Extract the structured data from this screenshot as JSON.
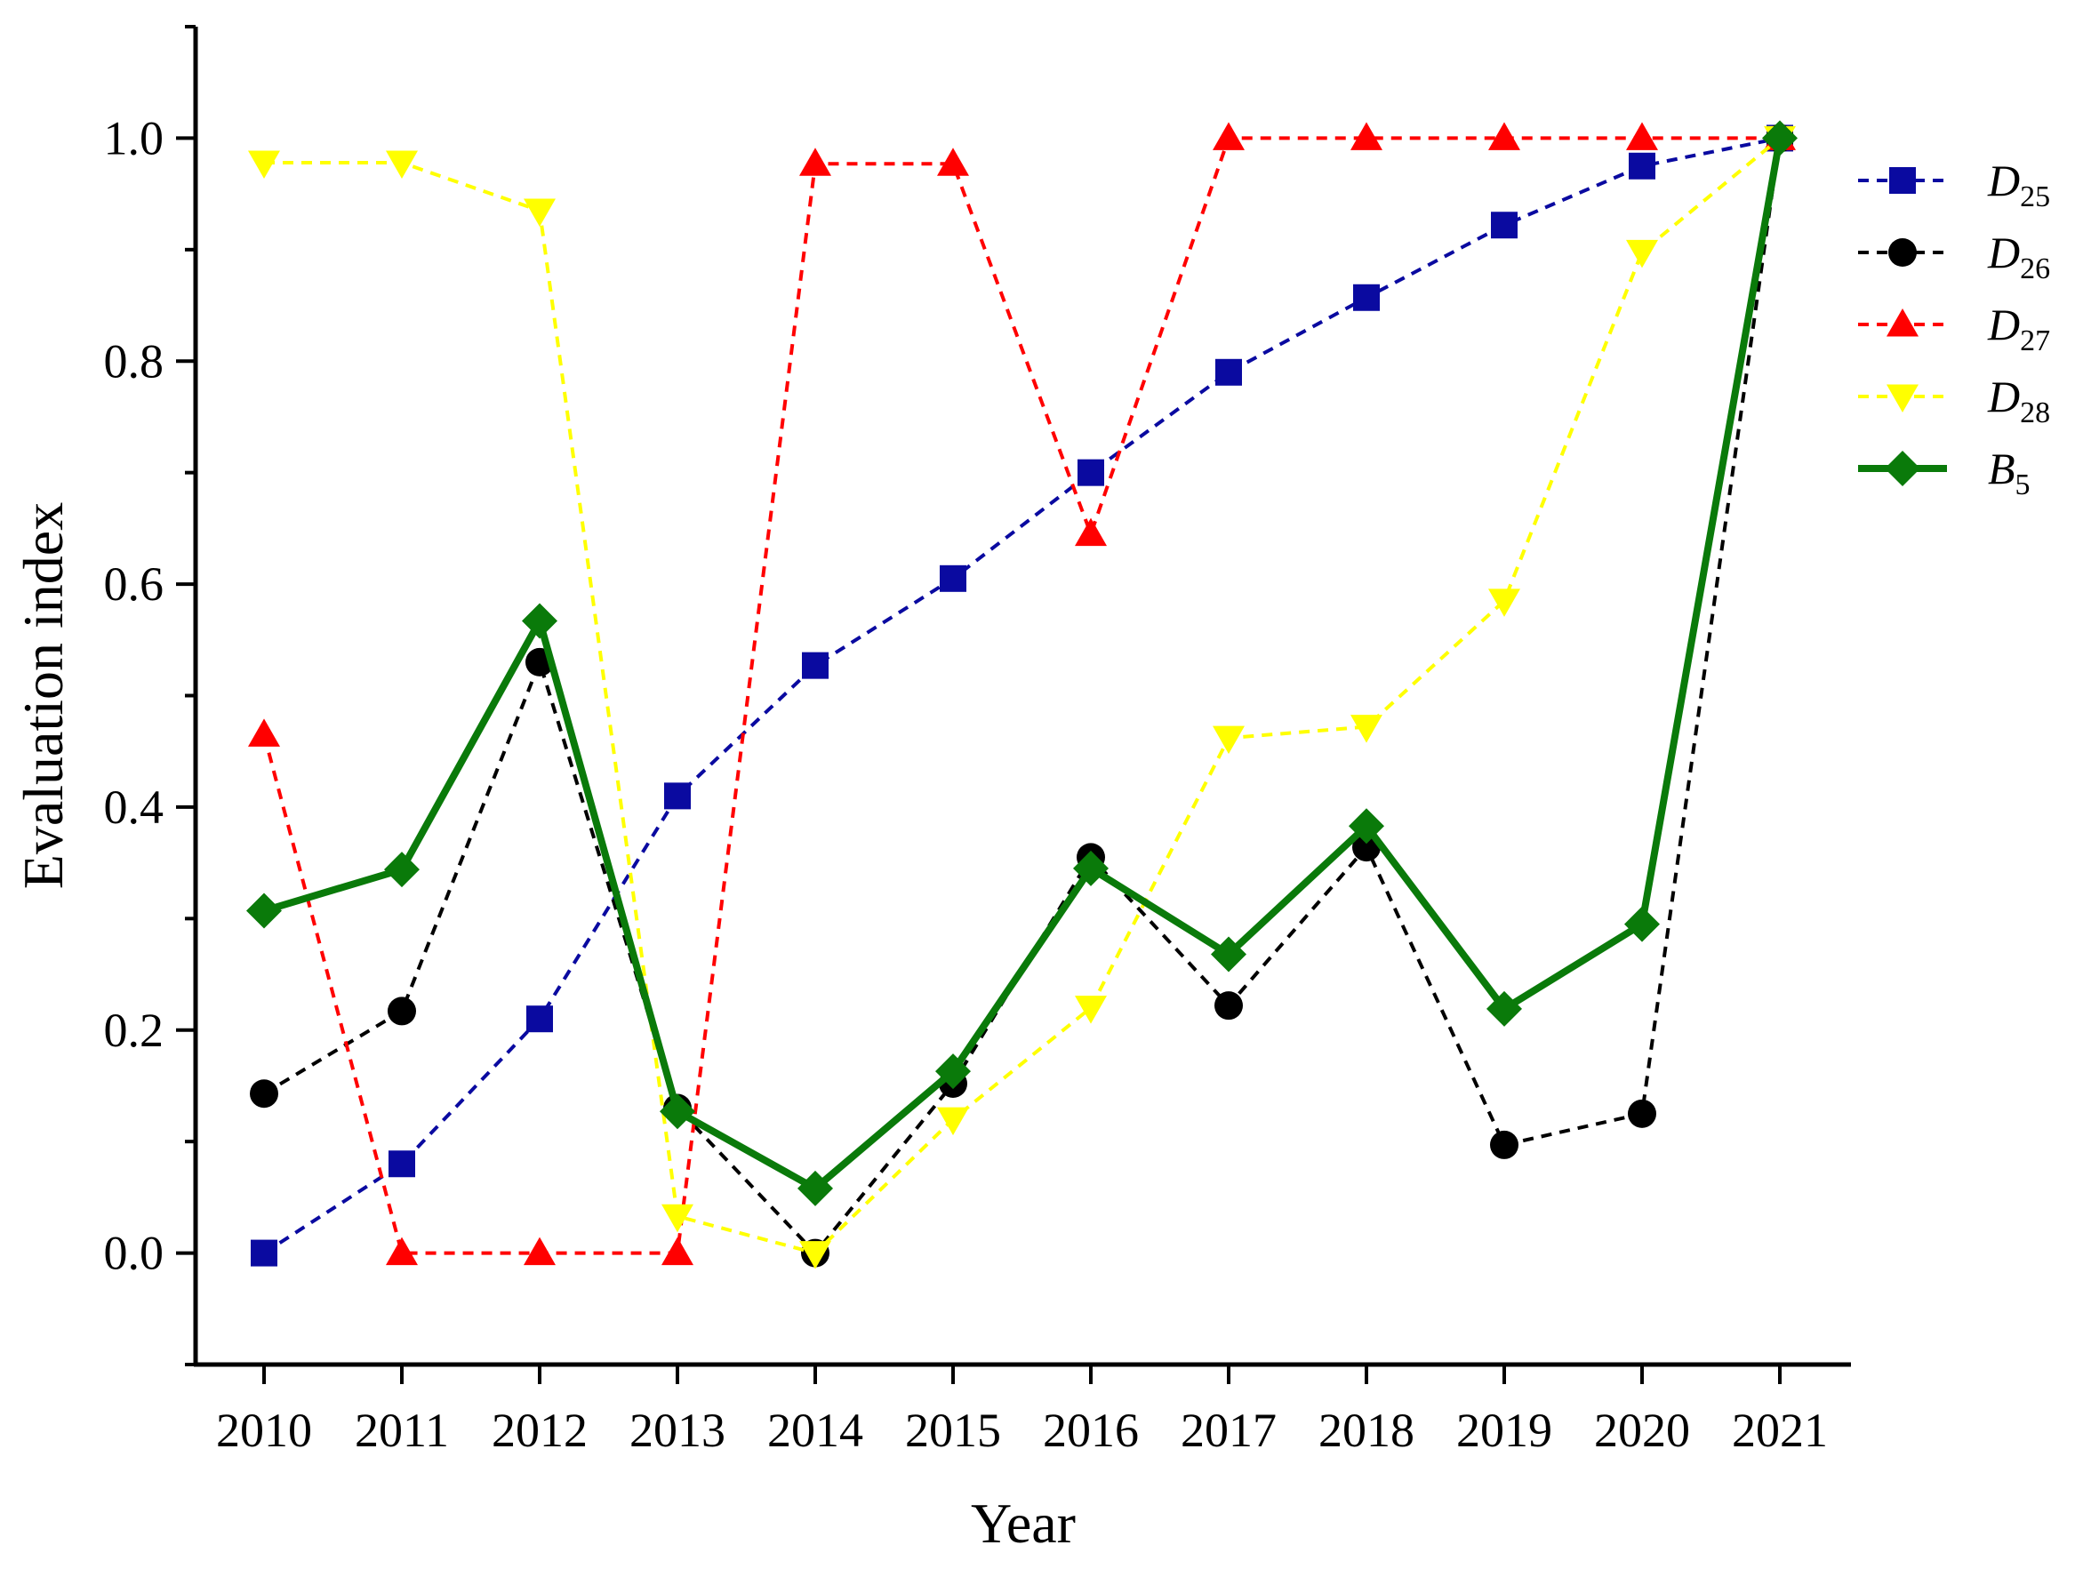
{
  "chart_data": {
    "type": "line",
    "title": "",
    "xlabel": "Year",
    "ylabel": "Evaluation index",
    "categories": [
      "2010",
      "2011",
      "2012",
      "2013",
      "2014",
      "2015",
      "2016",
      "2017",
      "2018",
      "2019",
      "2020",
      "2021"
    ],
    "ylim": [
      -0.1,
      1.1
    ],
    "yticks": [
      "0.0",
      "0.2",
      "0.4",
      "0.6",
      "0.8",
      "1.0"
    ],
    "legend_position": "top-right",
    "series": [
      {
        "key": "D25",
        "name": "D",
        "sub": "25",
        "color": "#0a0aa0",
        "marker": "square",
        "dashed": true,
        "values": [
          0.0,
          0.08,
          0.21,
          0.41,
          0.527,
          0.605,
          0.7,
          0.79,
          0.857,
          0.922,
          0.975,
          1.0
        ]
      },
      {
        "key": "D26",
        "name": "D",
        "sub": "26",
        "color": "#000000",
        "marker": "circle",
        "dashed": true,
        "values": [
          0.143,
          0.217,
          0.53,
          0.13,
          0.0,
          0.152,
          0.355,
          0.222,
          0.364,
          0.097,
          0.125,
          1.0
        ]
      },
      {
        "key": "D27",
        "name": "D",
        "sub": "27",
        "color": "#ff0000",
        "marker": "triangle-up",
        "dashed": true,
        "values": [
          0.465,
          0.0,
          0.0,
          0.0,
          0.977,
          0.977,
          0.645,
          1.0,
          1.0,
          1.0,
          1.0,
          1.0
        ]
      },
      {
        "key": "D28",
        "name": "D",
        "sub": "28",
        "color": "#ffff00",
        "marker": "triangle-down",
        "dashed": true,
        "values": [
          0.978,
          0.978,
          0.935,
          0.033,
          0.0,
          0.12,
          0.22,
          0.462,
          0.472,
          0.585,
          0.898,
          1.0
        ]
      },
      {
        "key": "B5",
        "name": "B",
        "sub": "5",
        "color": "#0a7a0a",
        "marker": "diamond",
        "dashed": false,
        "values": [
          0.307,
          0.344,
          0.567,
          0.127,
          0.058,
          0.163,
          0.345,
          0.268,
          0.383,
          0.219,
          0.295,
          1.0
        ]
      }
    ]
  }
}
